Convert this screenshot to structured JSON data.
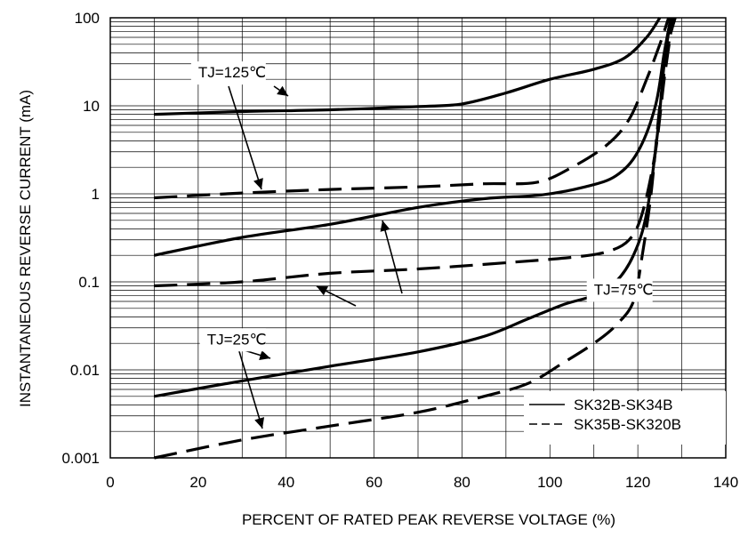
{
  "chart_data": {
    "type": "line",
    "title": "",
    "xlabel": "PERCENT OF RATED PEAK REVERSE VOLTAGE (%)",
    "ylabel": "INSTANTANEOUS REVERSE CURRENT (mA)",
    "xlim": [
      0,
      140
    ],
    "ylim": [
      0.001,
      100
    ],
    "yscale": "log",
    "grid": true,
    "x_ticks": [
      "0",
      "20",
      "40",
      "60",
      "80",
      "100",
      "120",
      "140"
    ],
    "y_ticks": [
      "0.001",
      "0.01",
      "0.1",
      "1",
      "10",
      "100"
    ],
    "legend_position": "bottom-right",
    "legend": [
      {
        "label": "SK32B-SK34B",
        "style": "solid"
      },
      {
        "label": "SK35B-SK320B",
        "style": "dashed"
      }
    ],
    "series": [
      {
        "group": "SK32B-SK34B",
        "condition": "TJ=125℃",
        "style": "solid",
        "points": [
          [
            10,
            8
          ],
          [
            30,
            8.6
          ],
          [
            50,
            9
          ],
          [
            70,
            9.8
          ],
          [
            80,
            10.5
          ],
          [
            90,
            14
          ],
          [
            100,
            20
          ],
          [
            110,
            26
          ],
          [
            117,
            35
          ],
          [
            122,
            60
          ],
          [
            125,
            100
          ]
        ]
      },
      {
        "group": "SK35B-SK320B",
        "condition": "TJ=125℃",
        "style": "dashed",
        "points": [
          [
            10,
            0.9
          ],
          [
            30,
            1.02
          ],
          [
            50,
            1.12
          ],
          [
            70,
            1.2
          ],
          [
            85,
            1.3
          ],
          [
            97,
            1.35
          ],
          [
            105,
            2
          ],
          [
            113,
            3.6
          ],
          [
            118,
            7
          ],
          [
            122,
            20
          ],
          [
            125,
            50
          ],
          [
            127,
            100
          ]
        ]
      },
      {
        "group": "SK32B-SK34B",
        "condition": "TJ=75℃",
        "style": "solid",
        "points": [
          [
            10,
            0.2
          ],
          [
            30,
            0.32
          ],
          [
            50,
            0.45
          ],
          [
            70,
            0.7
          ],
          [
            85,
            0.88
          ],
          [
            98,
            0.97
          ],
          [
            108,
            1.2
          ],
          [
            115,
            1.6
          ],
          [
            120,
            3
          ],
          [
            124,
            10
          ],
          [
            126,
            40
          ],
          [
            127.5,
            100
          ]
        ]
      },
      {
        "group": "SK35B-SK320B",
        "condition": "TJ=75℃",
        "style": "dashed",
        "points": [
          [
            10,
            0.09
          ],
          [
            30,
            0.1
          ],
          [
            50,
            0.125
          ],
          [
            70,
            0.14
          ],
          [
            90,
            0.165
          ],
          [
            105,
            0.19
          ],
          [
            113,
            0.22
          ],
          [
            118,
            0.3
          ],
          [
            121,
            0.6
          ],
          [
            124,
            3
          ],
          [
            126,
            20
          ],
          [
            128,
            100
          ]
        ]
      },
      {
        "group": "SK32B-SK34B",
        "condition": "TJ=25℃",
        "style": "solid",
        "points": [
          [
            10,
            0.005
          ],
          [
            30,
            0.0075
          ],
          [
            50,
            0.011
          ],
          [
            70,
            0.016
          ],
          [
            85,
            0.024
          ],
          [
            95,
            0.038
          ],
          [
            103,
            0.055
          ],
          [
            110,
            0.07
          ],
          [
            115,
            0.1
          ],
          [
            119,
            0.2
          ],
          [
            122,
            0.6
          ],
          [
            124.5,
            5
          ],
          [
            126,
            30
          ],
          [
            127.5,
            100
          ]
        ]
      },
      {
        "group": "SK35B-SK320B",
        "condition": "TJ=25℃",
        "style": "dashed",
        "points": [
          [
            10,
            0.001
          ],
          [
            30,
            0.0016
          ],
          [
            50,
            0.0023
          ],
          [
            70,
            0.0033
          ],
          [
            85,
            0.005
          ],
          [
            95,
            0.007
          ],
          [
            103,
            0.012
          ],
          [
            110,
            0.02
          ],
          [
            115,
            0.032
          ],
          [
            119,
            0.06
          ],
          [
            121,
            0.2
          ],
          [
            123,
            1
          ],
          [
            125,
            10
          ],
          [
            127,
            50
          ],
          [
            128.5,
            100
          ]
        ]
      }
    ],
    "annotations": [
      {
        "text": "TJ=125℃",
        "x": 20,
        "y": 21
      },
      {
        "text": "TJ=75℃",
        "x": 110,
        "y": 0.0715
      },
      {
        "text": "TJ=25℃",
        "x": 22,
        "y": 0.0195
      }
    ]
  }
}
